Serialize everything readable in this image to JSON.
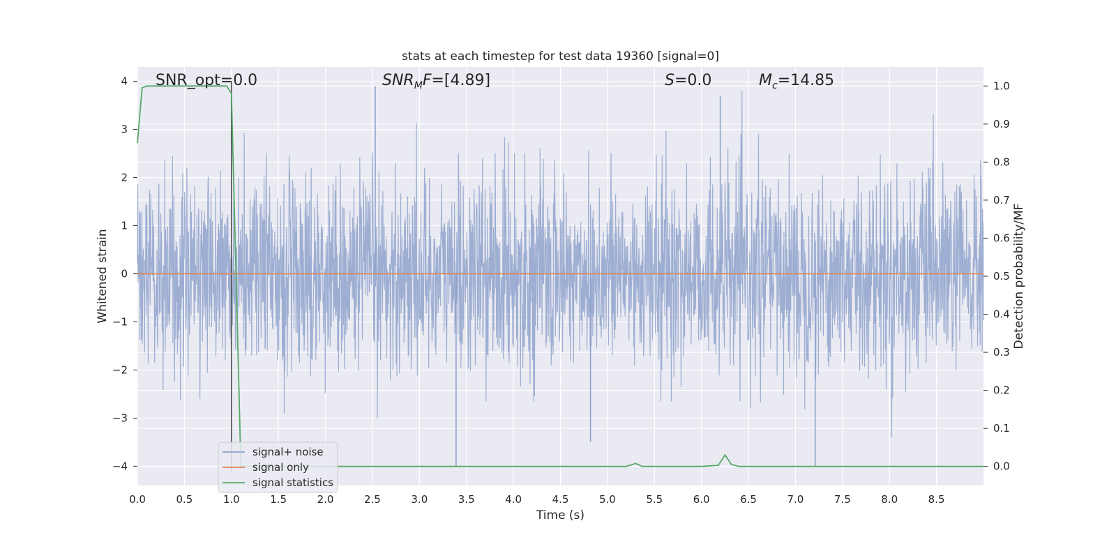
{
  "chart_data": {
    "type": "line",
    "title": "stats at each timestep for test data 19360 [signal=0]",
    "xlabel": "Time (s)",
    "ylabel": "Whitened strain",
    "y2label": "Detection probability/MF",
    "xlim": [
      0.0,
      9.0
    ],
    "ylim": [
      -4.4,
      4.3
    ],
    "y2lim": [
      -0.05,
      1.05
    ],
    "x_ticks": [
      "0.0",
      "0.5",
      "1.0",
      "1.5",
      "2.0",
      "2.5",
      "3.0",
      "3.5",
      "4.0",
      "4.5",
      "5.0",
      "5.5",
      "6.0",
      "6.5",
      "7.0",
      "7.5",
      "8.0",
      "8.5"
    ],
    "y_ticks": [
      "4",
      "3",
      "2",
      "1",
      "0",
      "−1",
      "−2",
      "−3",
      "−4"
    ],
    "y2_ticks": [
      "1.0",
      "0.9",
      "0.8",
      "0.7",
      "0.6",
      "0.5",
      "0.4",
      "0.3",
      "0.2",
      "0.1",
      "0.0"
    ],
    "grid": true,
    "legend_position": "lower-left",
    "annotations": [
      {
        "text": "SNR_opt=0.0"
      },
      {
        "text": "SNR_MF=[4.89]"
      },
      {
        "text": "S=0.0"
      },
      {
        "text": "M_c=14.85"
      }
    ],
    "series": [
      {
        "name": "signal+ noise",
        "color": "#8fa3cc",
        "axis": "left",
        "kind": "noise",
        "x_range": [
          0.0,
          9.0
        ],
        "amplitude_envelope": 4.0,
        "notable_peaks": [
          {
            "x": 2.53,
            "y": 3.9
          },
          {
            "x": 6.2,
            "y": 3.7
          },
          {
            "x": 3.39,
            "y": -4.0
          },
          {
            "x": 7.21,
            "y": -4.0
          },
          {
            "x": 1.0,
            "y": 3.9
          },
          {
            "x": 4.82,
            "y": -3.5
          }
        ]
      },
      {
        "name": "signal only",
        "color": "#dd8452",
        "axis": "left",
        "x": [
          0.0,
          9.0
        ],
        "y": [
          0.0,
          0.0
        ]
      },
      {
        "name": "signal statistics",
        "color": "#55a868",
        "axis": "right",
        "x": [
          0.0,
          0.05,
          0.1,
          0.2,
          0.3,
          0.5,
          0.6,
          0.7,
          0.8,
          0.9,
          0.95,
          1.0,
          1.05,
          1.08,
          1.1,
          1.2,
          2.0,
          3.0,
          4.0,
          5.0,
          5.2,
          5.3,
          5.37,
          5.45,
          6.0,
          6.18,
          6.25,
          6.32,
          6.4,
          7.0,
          8.0,
          9.0
        ],
        "y": [
          0.85,
          0.995,
          1.0,
          1.0,
          1.0,
          1.0,
          1.0,
          1.0,
          1.0,
          1.0,
          1.0,
          0.98,
          0.5,
          0.2,
          0.0,
          0.0,
          0.0,
          0.0,
          0.0,
          0.0,
          0.0,
          0.008,
          0.0,
          0.0,
          0.0,
          0.003,
          0.03,
          0.005,
          0.0,
          0.0,
          0.0,
          0.0
        ]
      }
    ],
    "vertical_marker": {
      "x": 1.0,
      "color": "#555555"
    }
  }
}
